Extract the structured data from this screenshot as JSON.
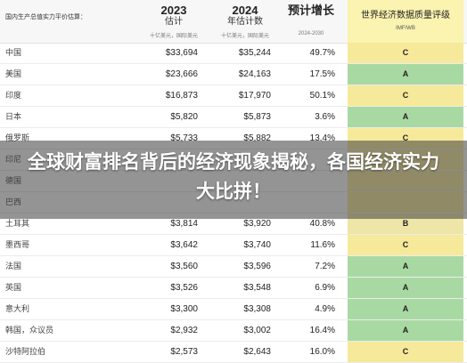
{
  "header": {
    "country_label": "国内生产总值实力平价估算：",
    "col2023": {
      "year": "2023",
      "sub": "估计",
      "unit": "十亿美元，国际美元"
    },
    "col2024": {
      "year": "2024",
      "sub": "年估计数",
      "unit": "十亿美元，国际美元"
    },
    "colGrowth": {
      "title": "预计增长",
      "period": "2024-2030"
    },
    "colRating": {
      "title": "世界经济数据质量评级",
      "badge": "IMF/WB"
    }
  },
  "rows": [
    {
      "country": "中国",
      "v2023": "$33,694",
      "v2024": "$35,244",
      "growth": "49.7%",
      "rating": "C"
    },
    {
      "country": "美国",
      "v2023": "$23,666",
      "v2024": "$24,163",
      "growth": "17.5%",
      "rating": "A"
    },
    {
      "country": "印度",
      "v2023": "$16,873",
      "v2024": "$17,970",
      "growth": "50.1%",
      "rating": "C"
    },
    {
      "country": "日本",
      "v2023": "$5,820",
      "v2024": "$5,873",
      "growth": "3.6%",
      "rating": "A"
    },
    {
      "country": "俄罗斯",
      "v2023": "$5,733",
      "v2024": "$5,882",
      "growth": "13.4%",
      "rating": "C"
    },
    {
      "country": "印尼",
      "v2023": "",
      "v2024": "",
      "growth": "",
      "rating": ""
    },
    {
      "country": "德国",
      "v2023": "",
      "v2024": "",
      "growth": "",
      "rating": ""
    },
    {
      "country": "巴西",
      "v2023": "",
      "v2024": "",
      "growth": "",
      "rating": ""
    },
    {
      "country": "土耳其",
      "v2023": "$3,814",
      "v2024": "$3,920",
      "growth": "40.8%",
      "rating": "B"
    },
    {
      "country": "墨西哥",
      "v2023": "$3,642",
      "v2024": "$3,740",
      "growth": "11.6%",
      "rating": "C"
    },
    {
      "country": "法国",
      "v2023": "$3,560",
      "v2024": "$3,596",
      "growth": "7.2%",
      "rating": "A"
    },
    {
      "country": "英国",
      "v2023": "$3,526",
      "v2024": "$3,548",
      "growth": "6.9%",
      "rating": "A"
    },
    {
      "country": "意大利",
      "v2023": "$3,300",
      "v2024": "$3,308",
      "growth": "4.9%",
      "rating": "A"
    },
    {
      "country": "韩国，众议员",
      "v2023": "$2,932",
      "v2024": "$3,002",
      "growth": "16.4%",
      "rating": "A"
    },
    {
      "country": "沙特阿拉伯",
      "v2023": "$2,573",
      "v2024": "$2,643",
      "growth": "16.0%",
      "rating": "C"
    }
  ],
  "overlay": {
    "title": "全球财富排名背后的经济现象揭秘，各国经济实力大比拼！"
  },
  "colors": {
    "rating_A": "#a9d9a2",
    "rating_B": "#eee6a6",
    "rating_C": "#f6e99a",
    "header_rating": "#fbf3b0"
  }
}
